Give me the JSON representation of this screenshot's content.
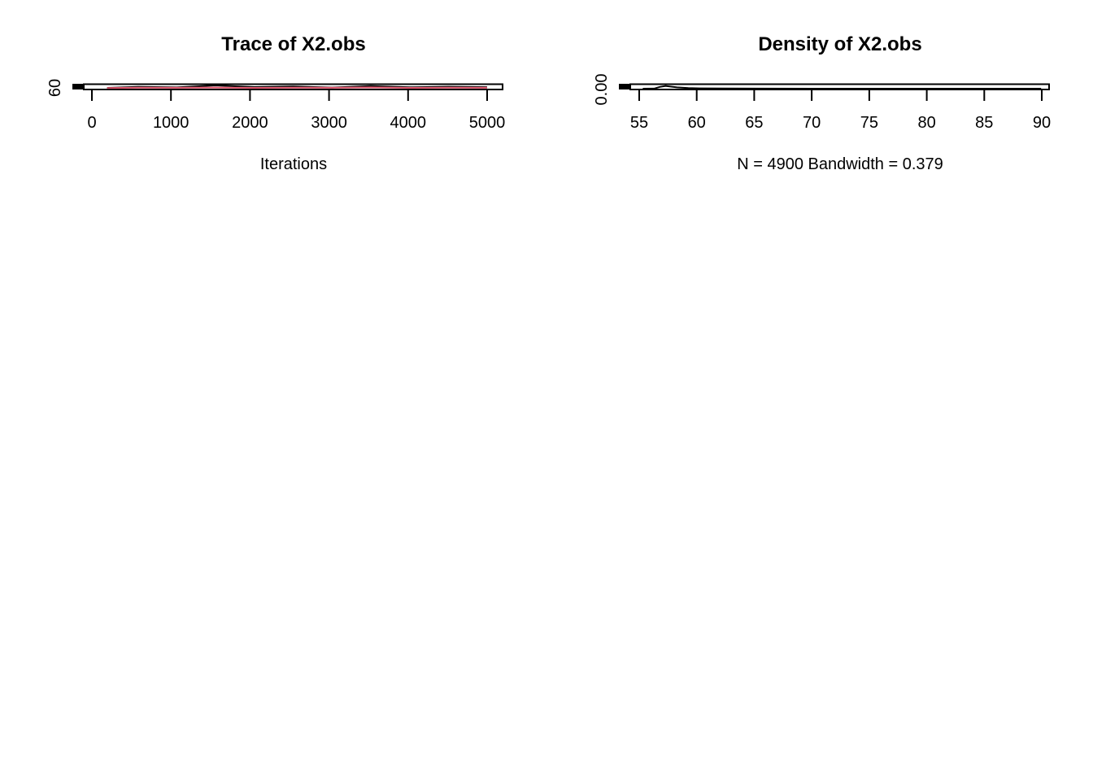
{
  "chart_data": [
    {
      "type": "line",
      "title": "Trace of X2.obs",
      "xlabel": "Iterations",
      "ylabel": "",
      "x_ticks": [
        0,
        1000,
        2000,
        3000,
        4000,
        5000
      ],
      "y_ticks": [
        60
      ],
      "xlim": [
        -200,
        5200
      ],
      "grid": false,
      "series": [
        {
          "color": "#000000",
          "x": [
            101,
            500,
            1000,
            1500,
            2000,
            2500,
            3000,
            3500,
            4000,
            4500,
            5000
          ],
          "values": [
            57.2,
            58.1,
            57.6,
            59.3,
            57.9,
            58.4,
            57.5,
            58.8,
            57.7,
            58.2,
            57.8
          ]
        },
        {
          "color": "#DF536B",
          "x": [
            101,
            500,
            1000,
            1500,
            2000,
            2500,
            3000,
            3500,
            4000,
            4500,
            5000
          ],
          "values": [
            57.0,
            57.4,
            57.3,
            57.5,
            57.2,
            57.4,
            57.3,
            57.6,
            57.2,
            57.4,
            57.3
          ]
        }
      ]
    },
    {
      "type": "line",
      "title": "Density of X2.obs",
      "xlabel": "N = 4900   Bandwidth = 0.379",
      "ylabel": "",
      "x_ticks": [
        55,
        60,
        65,
        70,
        75,
        80,
        85,
        90
      ],
      "y_ticks": [
        "0.00"
      ],
      "xlim": [
        53.9,
        90.7
      ],
      "grid": false,
      "series": [
        {
          "color": "#000000",
          "x": [
            55.0,
            56.0,
            56.5,
            57.0,
            57.5,
            58.0,
            59.0,
            60.0,
            62.0,
            65.0,
            70.0,
            80.0,
            90.0
          ],
          "values": [
            0.0,
            0.02,
            0.35,
            0.55,
            0.4,
            0.25,
            0.12,
            0.06,
            0.03,
            0.015,
            0.008,
            0.003,
            0.001
          ]
        }
      ]
    }
  ]
}
